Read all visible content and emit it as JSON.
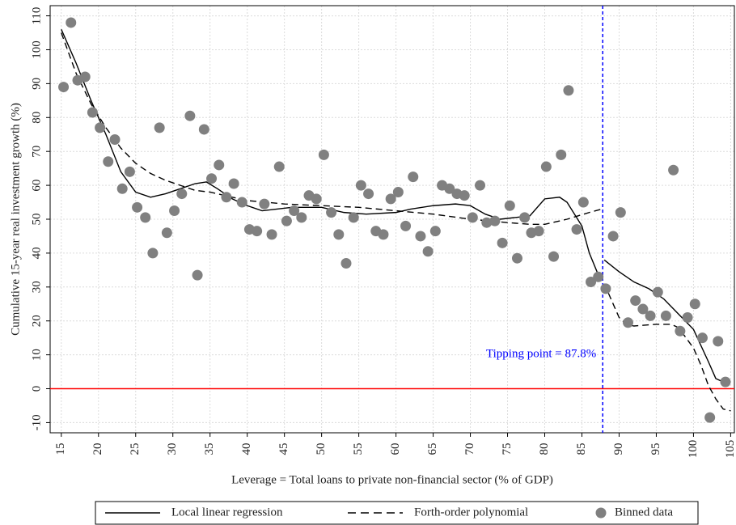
{
  "chart_data": {
    "type": "scatter",
    "x_label": "Leverage = Total loans to private non-financial sector (% of GDP)",
    "y_label": "Cumulative 15-year real investment growth (%)",
    "xlim": [
      13.5,
      105.5
    ],
    "ylim": [
      -13,
      113
    ],
    "xticks": [
      15,
      20,
      25,
      30,
      35,
      40,
      45,
      50,
      55,
      60,
      65,
      70,
      75,
      80,
      85,
      90,
      95,
      100,
      105
    ],
    "yticks": [
      -10,
      0,
      10,
      20,
      30,
      40,
      50,
      60,
      70,
      80,
      90,
      100,
      110
    ],
    "grid": true,
    "legend": "bottom",
    "reference_lines": {
      "vertical": {
        "value": 87.8,
        "label": "Tipping point = 87.8%",
        "color": "#0000ff"
      },
      "horizontal": {
        "value": 0,
        "color": "#ff0000"
      }
    },
    "series": [
      {
        "name": "Local linear regression",
        "type": "line",
        "dash": false,
        "color": "#000000",
        "x": [
          15,
          17,
          19,
          21,
          23,
          25,
          27,
          29,
          31,
          33,
          34.5,
          36,
          38,
          40,
          42,
          44,
          46,
          50,
          53,
          56,
          60,
          62,
          65,
          68,
          70,
          72,
          74,
          76,
          78,
          80,
          82,
          83,
          85,
          86,
          87.5,
          87.8,
          88,
          90,
          92,
          94,
          96,
          98,
          100,
          102,
          103,
          104
        ],
        "values": [
          106,
          96,
          85,
          75,
          64,
          58,
          56.5,
          57.5,
          59,
          60.5,
          61,
          59,
          56,
          54,
          52.5,
          53,
          53.5,
          53.5,
          52,
          51.5,
          52,
          53,
          54,
          54.5,
          54,
          51.5,
          50,
          50.5,
          51,
          56,
          56.5,
          55,
          48,
          40,
          32,
          null,
          38,
          34.5,
          31.5,
          29.5,
          26.5,
          22,
          17.5,
          8,
          3,
          2
        ]
      },
      {
        "name": "Forth-order polynomial",
        "type": "line",
        "dash": true,
        "color": "#000000",
        "x": [
          15,
          17,
          19,
          21,
          23,
          25,
          27,
          29,
          31,
          33,
          35,
          38,
          40,
          45,
          50,
          55,
          60,
          65,
          70,
          75,
          78,
          80,
          83,
          86,
          87.7,
          87.8,
          88,
          89,
          90,
          91,
          92,
          95,
          97,
          98,
          100,
          101,
          102,
          103,
          104,
          105
        ],
        "values": [
          105,
          93,
          84,
          77,
          71,
          66.5,
          63.5,
          61.5,
          60,
          58.5,
          58,
          56.5,
          55.5,
          54.5,
          54,
          53.5,
          52.5,
          51.5,
          50,
          49,
          48.5,
          48.5,
          50,
          52,
          53,
          null,
          31,
          26,
          21,
          19,
          18.5,
          19,
          19,
          18,
          12,
          7,
          1,
          -3,
          -6,
          -6.5
        ]
      },
      {
        "name": "Binned data",
        "type": "scatter",
        "color": "#808080",
        "x": [
          15.3,
          16.3,
          17.2,
          18.2,
          19.2,
          20.2,
          21.3,
          22.2,
          23.2,
          24.2,
          25.2,
          26.3,
          27.3,
          28.2,
          29.2,
          30.2,
          31.2,
          32.3,
          33.3,
          34.2,
          35.2,
          36.2,
          37.2,
          38.2,
          39.3,
          40.3,
          41.3,
          42.3,
          43.3,
          44.3,
          45.3,
          46.3,
          47.3,
          48.3,
          49.3,
          50.3,
          51.3,
          52.3,
          53.3,
          54.3,
          55.3,
          56.3,
          57.3,
          58.3,
          59.3,
          60.3,
          61.3,
          62.3,
          63.3,
          64.3,
          65.3,
          66.2,
          67.2,
          68.2,
          69.2,
          70.3,
          71.3,
          72.2,
          73.3,
          74.3,
          75.3,
          76.3,
          77.3,
          78.2,
          79.2,
          80.2,
          81.2,
          82.2,
          83.2,
          84.3,
          85.2,
          86.2,
          87.2,
          88.2,
          89.2,
          90.2,
          91.2,
          92.2,
          93.2,
          94.2,
          95.2,
          96.3,
          97.3,
          98.2,
          99.2,
          100.2,
          101.2,
          102.2,
          103.3,
          104.3
        ],
        "values": [
          89,
          108,
          91,
          92,
          81.5,
          77,
          67,
          73.5,
          59,
          64,
          53.5,
          50.5,
          40,
          77,
          46,
          52.5,
          57.5,
          80.5,
          33.5,
          76.5,
          62,
          66,
          56.5,
          60.5,
          55,
          47,
          46.5,
          54.5,
          45.5,
          65.5,
          49.5,
          52.5,
          50.5,
          57,
          56,
          69,
          52,
          45.5,
          37,
          50.5,
          60,
          57.5,
          46.5,
          45.5,
          56,
          58,
          48,
          62.5,
          45,
          40.5,
          46.5,
          60,
          59,
          57.5,
          57,
          50.5,
          60,
          49,
          49.5,
          43,
          54,
          38.5,
          50.5,
          46,
          46.5,
          65.5,
          39,
          69,
          88,
          47,
          55,
          31.5,
          33,
          29.5,
          45,
          52,
          19.5,
          26,
          23.5,
          21.5,
          28.5,
          21.5,
          64.5,
          17,
          21,
          25,
          15,
          -8.5,
          14,
          2
        ]
      }
    ]
  }
}
